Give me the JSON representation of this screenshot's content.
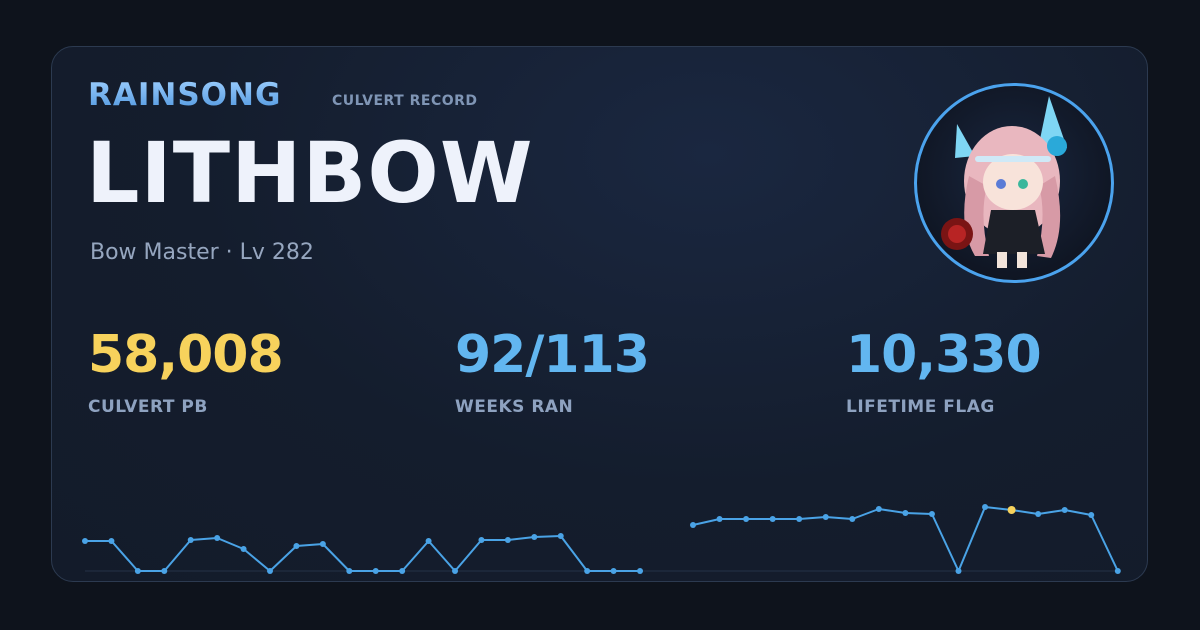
{
  "header": {
    "brand": "RAINSONG",
    "record_label": "CULVERT RECORD"
  },
  "character": {
    "name": "LITHBOW",
    "subtitle": "Bow Master · Lv 282"
  },
  "stats": {
    "culvert_pb": {
      "value": "58,008",
      "label": "CULVERT PB"
    },
    "weeks_ran": {
      "value": "92/113",
      "label": "WEEKS RAN"
    },
    "lifetime_flag": {
      "value": "10,330",
      "label": "LIFETIME FLAG"
    }
  },
  "colors": {
    "line": "#4aa3e6",
    "point": "#4aa3e6",
    "best_point": "#f7d25c",
    "accent_gold": "#f7d25c",
    "accent_blue": "#62b6f0"
  },
  "chart_data": {
    "type": "line",
    "title": "",
    "xlabel": "",
    "ylabel": "",
    "best_index": 34,
    "series": [
      {
        "segments": [
          [
            0.3,
            0.3,
            0.0,
            0.0,
            0.31,
            0.33,
            0.22,
            0.0,
            0.25,
            0.27,
            0.0,
            0.0,
            0.0,
            0.3,
            0.0,
            0.31,
            0.31,
            0.34,
            0.35,
            0.0,
            0.0,
            0.0
          ],
          [
            0.46,
            0.52,
            0.52,
            0.52,
            0.52,
            0.54,
            0.52,
            0.62,
            0.58,
            0.57,
            0.0,
            0.64,
            0.61,
            0.57,
            0.61,
            0.56,
            0.0
          ]
        ]
      }
    ]
  }
}
